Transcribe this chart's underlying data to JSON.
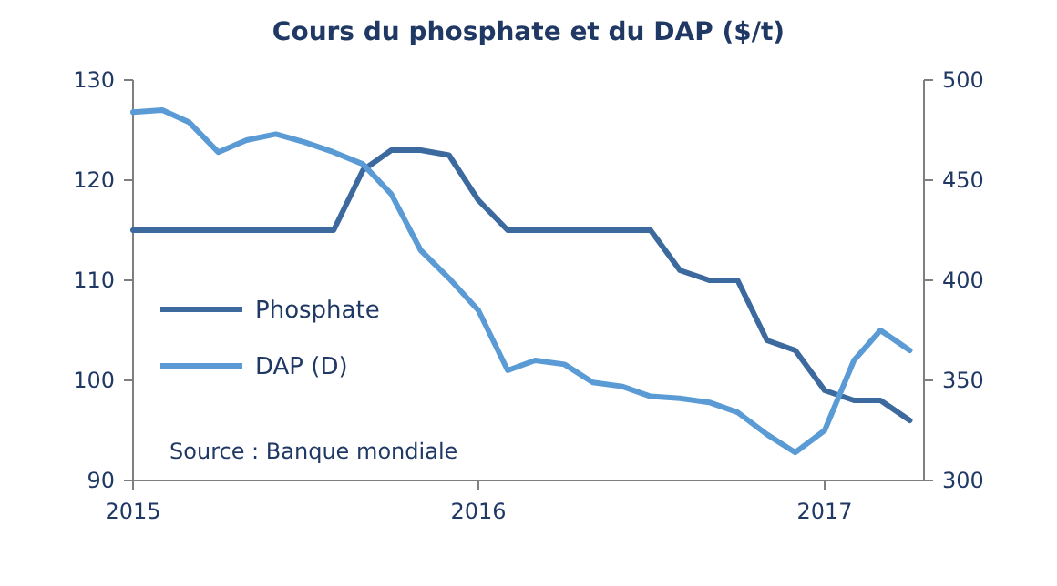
{
  "chart_data": {
    "type": "line",
    "title": "Cours du phosphate et du DAP ($/t)",
    "x": [
      "2015-01",
      "2015-02",
      "2015-03",
      "2015-04",
      "2015-05",
      "2015-06",
      "2015-07",
      "2015-08",
      "2015-09",
      "2015-10",
      "2015-11",
      "2015-12",
      "2016-01",
      "2016-02",
      "2016-03",
      "2016-04",
      "2016-05",
      "2016-06",
      "2016-07",
      "2016-08",
      "2016-09",
      "2016-10",
      "2016-11",
      "2016-12",
      "2017-01",
      "2017-02",
      "2017-03",
      "2017-04"
    ],
    "series": [
      {
        "name": "Phosphate",
        "color": "#3d6a9e",
        "values": [
          115,
          115,
          115,
          115,
          115,
          115,
          115,
          115,
          121,
          123,
          123,
          122.5,
          118,
          115,
          115,
          115,
          115,
          115,
          115,
          111,
          110,
          110,
          104,
          103,
          99,
          98,
          98,
          96
        ]
      },
      {
        "name": "DAP (D)",
        "color": "#5b9bd5",
        "axis": "y2",
        "values": [
          484,
          485,
          479,
          464,
          470,
          473,
          469,
          464,
          458,
          443,
          415,
          401,
          385,
          355,
          360,
          358,
          349,
          347,
          342,
          341,
          339,
          334,
          323,
          314,
          325,
          360,
          375,
          365
        ]
      }
    ],
    "xlim": [
      "2015-01-01",
      "2017-04-16"
    ],
    "xticks": [
      {
        "value": "2015-01-01",
        "label": "2015"
      },
      {
        "value": "2016-01-01",
        "label": "2016"
      },
      {
        "value": "2017-01-01",
        "label": "2017"
      }
    ],
    "ylim": [
      90,
      130
    ],
    "yticks": [
      90,
      100,
      110,
      120,
      130
    ],
    "y2lim": [
      300,
      500
    ],
    "y2ticks": [
      300,
      350,
      400,
      450,
      500
    ],
    "legend": "left",
    "grid": false,
    "line_style": "solid",
    "marker": "none",
    "annotations": [
      "Source : Banque mondiale"
    ]
  }
}
